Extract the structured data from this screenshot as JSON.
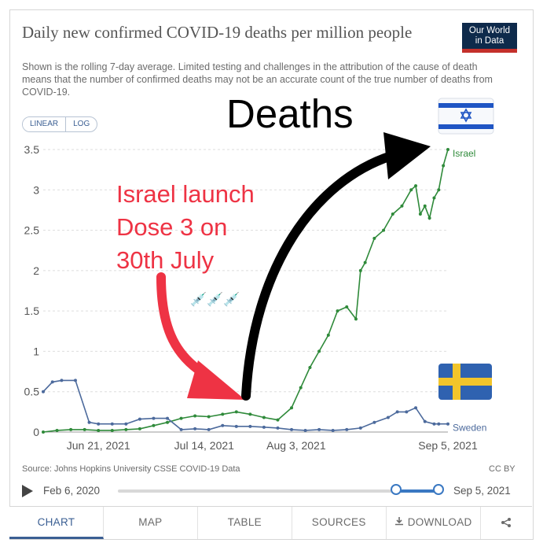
{
  "header": {
    "title": "Daily new confirmed COVID-19 deaths per million people",
    "subtitle": "Shown is the rolling 7-day average. Limited testing and challenges in the attribution of the cause of death means that the number of confirmed deaths may not be an accurate count of the true number of deaths from COVID-19.",
    "logo_line1": "Our World",
    "logo_line2": "in Data"
  },
  "scale_toggle": {
    "linear": "LINEAR",
    "log": "LOG",
    "selected": "LINEAR"
  },
  "overlay": {
    "annotation_red": [
      "Israel launch",
      "Dose 3 on",
      "30th July"
    ],
    "annotation_big": "Deaths",
    "syringe_glyphs": "💉💉💉",
    "arrow_red_color": "#ee3344",
    "arrow_black_color": "#000000",
    "flag_israel": "israel-flag-icon",
    "flag_sweden": "sweden-flag-icon"
  },
  "footer": {
    "source": "Source: Johns Hopkins University CSSE COVID-19 Data",
    "license": "CC BY",
    "timeline_start": "Feb 6, 2020",
    "timeline_end": "Sep 5, 2021",
    "timeline_selection": [
      0.864,
      1.0
    ]
  },
  "tabs": [
    {
      "label": "CHART",
      "active": true
    },
    {
      "label": "MAP",
      "active": false
    },
    {
      "label": "TABLE",
      "active": false
    },
    {
      "label": "SOURCES",
      "active": false
    },
    {
      "label": "DOWNLOAD",
      "active": false,
      "icon": "download-icon"
    },
    {
      "label": "",
      "active": false,
      "icon": "share-icon"
    }
  ],
  "chart_data": {
    "type": "line",
    "title": "Daily new confirmed COVID-19 deaths per million people",
    "xlabel": "",
    "ylabel": "",
    "xlim": [
      "2021-06-09",
      "2021-09-05"
    ],
    "ylim": [
      0,
      3.5
    ],
    "yticks": [
      0,
      0.5,
      1,
      1.5,
      2,
      2.5,
      3,
      3.5
    ],
    "ytick_labels": [
      "0",
      "0.5",
      "1",
      "1.5",
      "2",
      "2.5",
      "3",
      "3.5"
    ],
    "xticks": [
      "2021-06-21",
      "2021-07-14",
      "2021-08-03",
      "2021-09-05"
    ],
    "xtick_labels": [
      "Jun 21, 2021",
      "Jul 14, 2021",
      "Aug 3, 2021",
      "Sep 5, 2021"
    ],
    "grid": true,
    "series": [
      {
        "name": "Israel",
        "color": "#2f8a3a",
        "x": [
          "2021-06-09",
          "2021-06-12",
          "2021-06-15",
          "2021-06-18",
          "2021-06-21",
          "2021-06-24",
          "2021-06-27",
          "2021-06-30",
          "2021-07-03",
          "2021-07-06",
          "2021-07-09",
          "2021-07-12",
          "2021-07-15",
          "2021-07-18",
          "2021-07-21",
          "2021-07-24",
          "2021-07-27",
          "2021-07-30",
          "2021-08-02",
          "2021-08-04",
          "2021-08-06",
          "2021-08-08",
          "2021-08-10",
          "2021-08-12",
          "2021-08-14",
          "2021-08-16",
          "2021-08-17",
          "2021-08-18",
          "2021-08-20",
          "2021-08-22",
          "2021-08-24",
          "2021-08-26",
          "2021-08-28",
          "2021-08-29",
          "2021-08-30",
          "2021-08-31",
          "2021-09-01",
          "2021-09-02",
          "2021-09-03",
          "2021-09-04",
          "2021-09-05"
        ],
        "y": [
          0.0,
          0.02,
          0.03,
          0.03,
          0.02,
          0.02,
          0.03,
          0.04,
          0.08,
          0.12,
          0.17,
          0.2,
          0.19,
          0.22,
          0.25,
          0.22,
          0.18,
          0.15,
          0.3,
          0.55,
          0.8,
          1.0,
          1.2,
          1.5,
          1.55,
          1.4,
          2.0,
          2.1,
          2.4,
          2.5,
          2.7,
          2.8,
          3.0,
          3.05,
          2.7,
          2.8,
          2.65,
          2.9,
          3.0,
          3.3,
          3.5
        ]
      },
      {
        "name": "Sweden",
        "color": "#4c6a9c",
        "x": [
          "2021-06-09",
          "2021-06-11",
          "2021-06-13",
          "2021-06-16",
          "2021-06-19",
          "2021-06-21",
          "2021-06-24",
          "2021-06-27",
          "2021-06-30",
          "2021-07-03",
          "2021-07-06",
          "2021-07-09",
          "2021-07-12",
          "2021-07-15",
          "2021-07-18",
          "2021-07-21",
          "2021-07-24",
          "2021-07-27",
          "2021-07-30",
          "2021-08-02",
          "2021-08-05",
          "2021-08-08",
          "2021-08-11",
          "2021-08-14",
          "2021-08-17",
          "2021-08-20",
          "2021-08-23",
          "2021-08-25",
          "2021-08-27",
          "2021-08-29",
          "2021-08-31",
          "2021-09-02",
          "2021-09-03",
          "2021-09-05"
        ],
        "y": [
          0.5,
          0.62,
          0.64,
          0.64,
          0.12,
          0.1,
          0.1,
          0.1,
          0.16,
          0.17,
          0.17,
          0.03,
          0.04,
          0.03,
          0.08,
          0.07,
          0.07,
          0.06,
          0.05,
          0.03,
          0.02,
          0.03,
          0.02,
          0.03,
          0.05,
          0.12,
          0.18,
          0.25,
          0.25,
          0.3,
          0.13,
          0.1,
          0.1,
          0.1
        ]
      }
    ],
    "legend": "inline-end"
  }
}
